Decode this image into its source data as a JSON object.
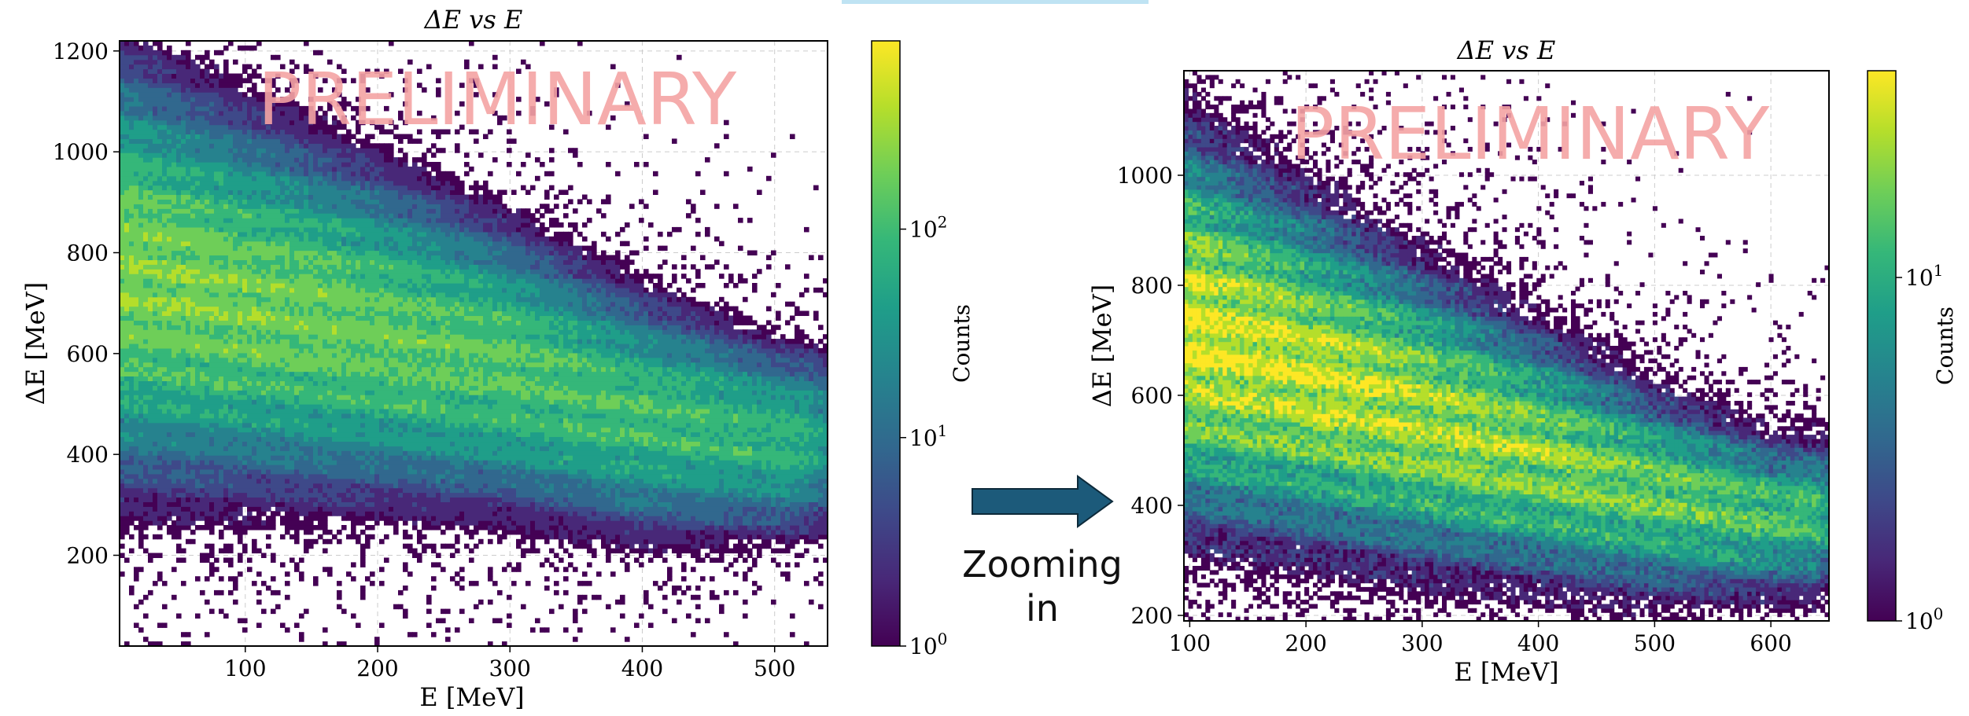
{
  "colors": {
    "viridis": [
      "#440154",
      "#482878",
      "#3e4989",
      "#31688e",
      "#26828e",
      "#1f9e89",
      "#35b779",
      "#6ece58",
      "#b5de2b",
      "#fde725"
    ],
    "watermark": "#f4a3a3",
    "arrow_fill": "#1c5a7a",
    "arrow_stroke": "#0d2a3a",
    "top_strip": "#bfe3f3"
  },
  "arrow": {
    "label_line1": "Zooming",
    "label_line2": "in",
    "icon": "right-arrow"
  },
  "chart_data": [
    {
      "type": "heatmap",
      "title": "ΔE vs E",
      "xlabel": "E [MeV]",
      "ylabel": "ΔE [MeV]",
      "xlim": [
        5,
        540
      ],
      "ylim": [
        20,
        1220
      ],
      "xticks": [
        100,
        200,
        300,
        400,
        500
      ],
      "yticks": [
        200,
        400,
        600,
        800,
        1000,
        1200
      ],
      "grid": true,
      "watermark": "PRELIMINARY",
      "colorbar": {
        "label": "Counts",
        "scale": "log",
        "range": [
          1,
          800
        ],
        "ticks": [
          "10^0",
          "10^1",
          "10^2"
        ]
      },
      "band": {
        "centers": [
          [
            5,
            760
          ],
          [
            100,
            700
          ],
          [
            200,
            640
          ],
          [
            300,
            570
          ],
          [
            400,
            480
          ],
          [
            500,
            430
          ]
        ],
        "halfwidths": [
          [
            5,
            260
          ],
          [
            100,
            230
          ],
          [
            200,
            200
          ],
          [
            300,
            175
          ],
          [
            400,
            150
          ],
          [
            500,
            120
          ]
        ],
        "x_end": 520,
        "peak_counts": 300
      }
    },
    {
      "type": "heatmap",
      "title": "ΔE vs E",
      "xlabel": "E [MeV]",
      "ylabel": "ΔE [MeV]",
      "xlim": [
        95,
        650
      ],
      "ylim": [
        190,
        1190
      ],
      "xticks": [
        100,
        200,
        300,
        400,
        500,
        600
      ],
      "yticks": [
        200,
        400,
        600,
        800,
        1000
      ],
      "grid": true,
      "watermark": "PRELIMINARY",
      "colorbar": {
        "label": "Counts",
        "scale": "log",
        "range": [
          1,
          40
        ],
        "ticks": [
          "10^0",
          "10^1"
        ]
      },
      "band": {
        "centers": [
          [
            100,
            720
          ],
          [
            200,
            640
          ],
          [
            300,
            560
          ],
          [
            400,
            490
          ],
          [
            500,
            420
          ],
          [
            600,
            380
          ]
        ],
        "halfwidths": [
          [
            100,
            260
          ],
          [
            200,
            230
          ],
          [
            300,
            200
          ],
          [
            400,
            170
          ],
          [
            500,
            140
          ],
          [
            600,
            110
          ]
        ],
        "x_end": 640,
        "peak_counts": 40
      }
    }
  ]
}
